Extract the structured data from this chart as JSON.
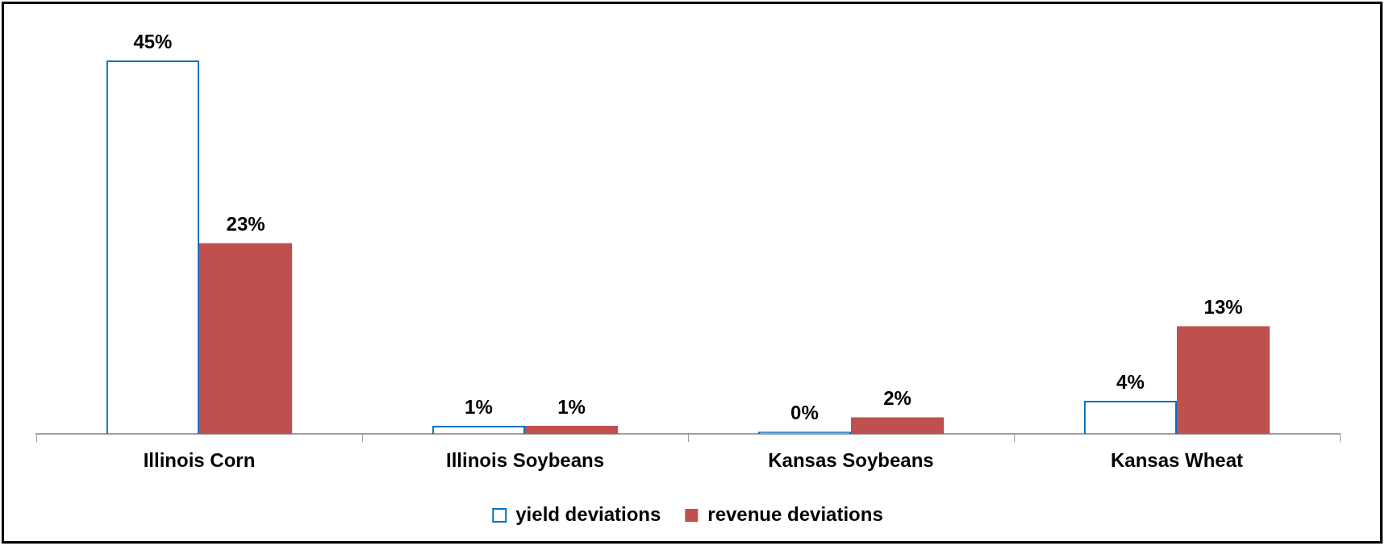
{
  "chart_data": {
    "type": "bar",
    "categories": [
      "Illinois Corn",
      "Illinois Soybeans",
      "Kansas Soybeans",
      "Kansas Wheat"
    ],
    "series": [
      {
        "name": "yield deviations",
        "color": "#0070c0",
        "values": [
          45,
          1,
          0,
          4
        ],
        "value_labels": [
          "45%",
          "1%",
          "0%",
          "4%"
        ]
      },
      {
        "name": "revenue deviations",
        "color": "#c0504d",
        "values": [
          23,
          1,
          2,
          13
        ],
        "value_labels": [
          "23%",
          "1%",
          "2%",
          "13%"
        ]
      }
    ],
    "legend": "bottom",
    "grid": false,
    "tick_labels": "x"
  }
}
